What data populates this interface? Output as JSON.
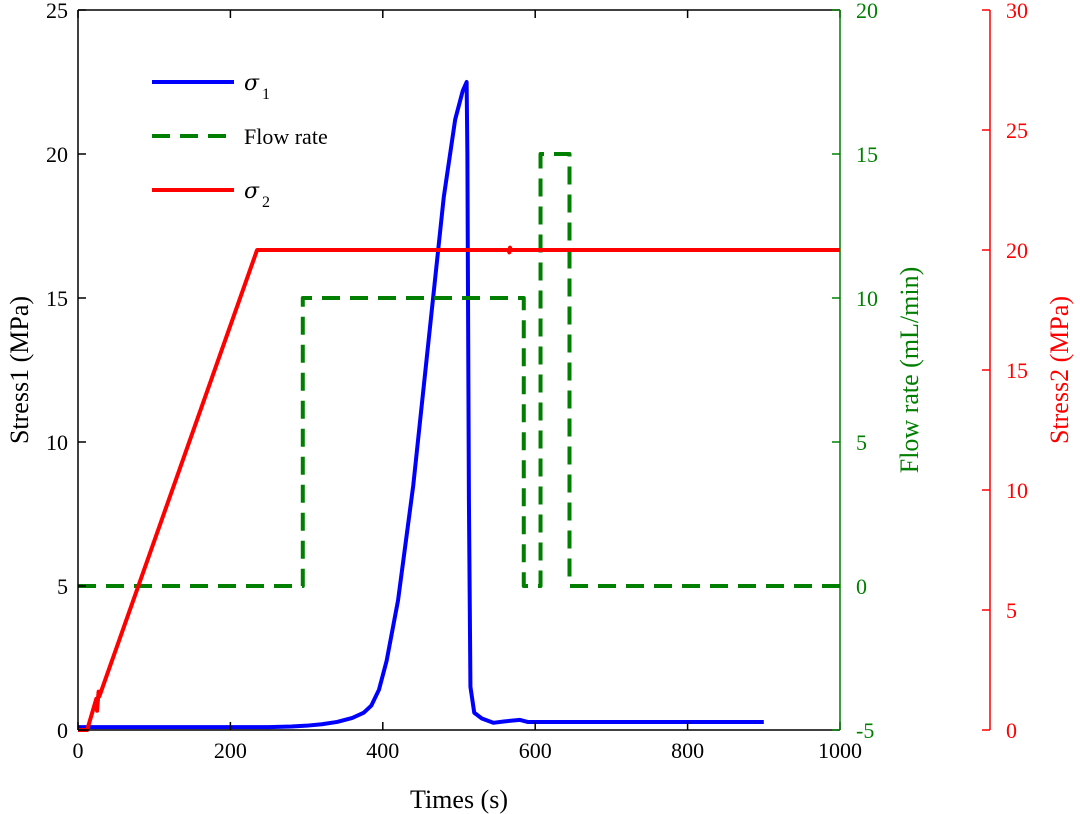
{
  "chart_data": {
    "type": "line",
    "xlabel": "Times (s)",
    "xlim": [
      0,
      1000
    ],
    "xticks": [
      0,
      200,
      400,
      600,
      800,
      1000
    ],
    "axes": {
      "left": {
        "label": "Stress1 (MPa)",
        "lim": [
          0,
          25
        ],
        "ticks": [
          0,
          5,
          10,
          15,
          20,
          25
        ],
        "color": "#000000"
      },
      "right1": {
        "label": "Flow rate (mL/min)",
        "lim": [
          -5,
          20
        ],
        "ticks": [
          -5,
          0,
          5,
          10,
          15,
          20
        ],
        "color": "#007f00"
      },
      "right2": {
        "label": "Stress2 (MPa)",
        "lim": [
          0,
          30
        ],
        "ticks": [
          0,
          5,
          10,
          15,
          20,
          25,
          30
        ],
        "color": "#ff0000"
      }
    },
    "legend_position": "top-left",
    "series": [
      {
        "name": "σ",
        "name_sub": "1",
        "axis": "left",
        "color": "#0000ff",
        "style": "solid",
        "x": [
          0,
          100,
          200,
          250,
          280,
          300,
          320,
          340,
          360,
          375,
          385,
          395,
          405,
          420,
          440,
          460,
          480,
          495,
          505,
          510,
          511,
          513,
          515,
          520,
          530,
          545,
          560,
          580,
          590,
          600,
          700,
          800,
          900
        ],
        "y": [
          0.1,
          0.1,
          0.1,
          0.1,
          0.12,
          0.15,
          0.2,
          0.28,
          0.42,
          0.6,
          0.85,
          1.4,
          2.4,
          4.5,
          8.5,
          13.5,
          18.5,
          21.2,
          22.2,
          22.5,
          20.0,
          8.0,
          1.5,
          0.6,
          0.4,
          0.25,
          0.3,
          0.35,
          0.28,
          0.28,
          0.28,
          0.28,
          0.28
        ]
      },
      {
        "name": "Flow rate",
        "axis": "right1",
        "color": "#007f00",
        "style": "dashed",
        "x": [
          0,
          295,
          295,
          585,
          585,
          607,
          607,
          645,
          645,
          1000
        ],
        "y": [
          0,
          0,
          10,
          10,
          0,
          0,
          15,
          15,
          0,
          0
        ]
      },
      {
        "name": "σ",
        "name_sub": "2",
        "axis": "right2",
        "color": "#ff0000",
        "style": "solid",
        "x": [
          0,
          12,
          24,
          25,
          27,
          28,
          235,
          565,
          566,
          567,
          568,
          1000
        ],
        "y": [
          0,
          0,
          1.3,
          0.8,
          1.6,
          1.4,
          20,
          20,
          19.9,
          20.1,
          20,
          20
        ]
      }
    ]
  }
}
